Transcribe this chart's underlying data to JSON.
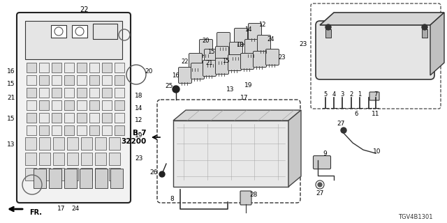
{
  "bg_color": "#ffffff",
  "part_number": "TGV4B1301",
  "fr_label": "FR.",
  "b7_label": "B-7\n32200",
  "fig_w": 6.4,
  "fig_h": 3.2,
  "dpi": 100
}
